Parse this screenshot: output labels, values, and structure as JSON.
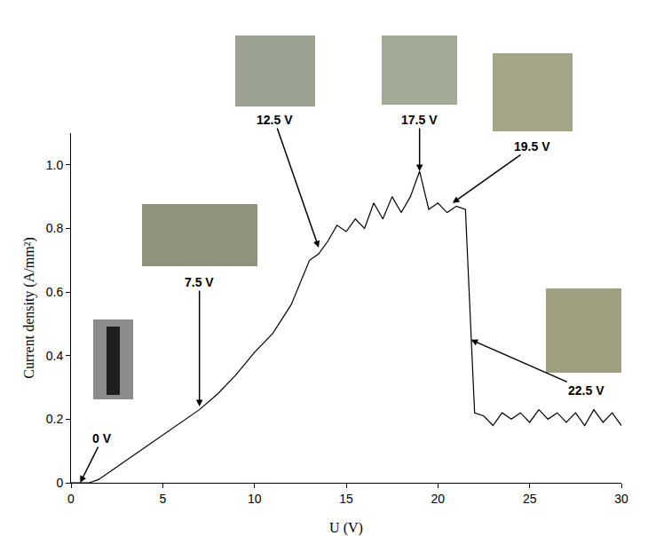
{
  "chart_data": {
    "type": "line",
    "xlabel": "U (V)",
    "ylabel": "Current density (A/mm²)",
    "x": [
      0,
      1,
      1.5,
      2,
      3,
      4,
      5,
      6,
      7,
      8,
      9,
      10,
      10.5,
      11,
      12,
      12.5,
      13,
      13.5,
      14,
      14.5,
      15,
      15.5,
      16,
      16.5,
      17,
      17.5,
      18,
      18.5,
      19,
      19.5,
      20,
      20.5,
      21,
      21.5,
      21.7,
      22,
      22.5,
      23,
      23.5,
      24,
      24.5,
      25,
      25.5,
      26,
      26.5,
      27,
      27.5,
      28,
      28.5,
      29,
      29.5,
      30
    ],
    "values": [
      0,
      0,
      0.01,
      0.03,
      0.07,
      0.11,
      0.15,
      0.19,
      0.23,
      0.28,
      0.34,
      0.41,
      0.44,
      0.47,
      0.56,
      0.63,
      0.7,
      0.72,
      0.76,
      0.81,
      0.79,
      0.83,
      0.8,
      0.88,
      0.83,
      0.9,
      0.85,
      0.9,
      0.98,
      0.86,
      0.88,
      0.85,
      0.87,
      0.86,
      0.6,
      0.22,
      0.21,
      0.18,
      0.22,
      0.2,
      0.22,
      0.19,
      0.23,
      0.2,
      0.22,
      0.19,
      0.22,
      0.18,
      0.23,
      0.19,
      0.22,
      0.18
    ],
    "color": "#000000",
    "xlim": [
      0,
      30
    ],
    "ylim": [
      0,
      1.1
    ],
    "xticks": [
      0,
      5,
      10,
      15,
      20,
      25,
      30
    ],
    "yticks": [
      0,
      0.2,
      0.4,
      0.6,
      0.8,
      {
        "value": 1,
        "label": "1.0"
      }
    ],
    "grid": false,
    "annotations": [
      {
        "text": "0 V",
        "x": 0.5,
        "y": 0
      },
      {
        "text": "7.5 V",
        "x": 7,
        "y": 0.24
      },
      {
        "text": "12.5 V",
        "x": 13.5,
        "y": 0.74
      },
      {
        "text": "17.5 V",
        "x": 19,
        "y": 0.98
      },
      {
        "text": "19.5 V",
        "x": 20.8,
        "y": 0.88
      },
      {
        "text": "22.5 V",
        "x": 21.8,
        "y": 0.45
      }
    ]
  }
}
